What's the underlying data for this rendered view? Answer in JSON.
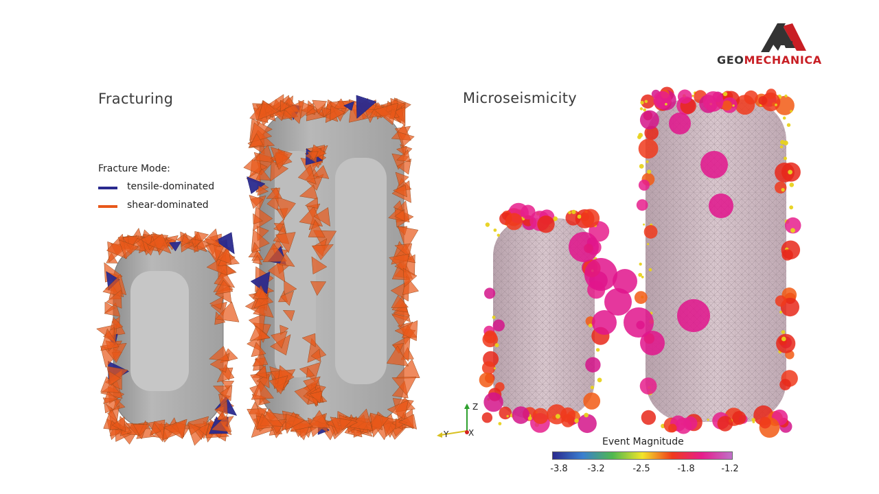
{
  "brand": {
    "name_part1": "GEO",
    "name_part2": "MECHANICA",
    "dark_color": "#333333",
    "accent_color": "#c81e24"
  },
  "panels": {
    "left_title": "Fracturing",
    "right_title": "Microseismicity"
  },
  "legend": {
    "title": "Fracture Mode:",
    "items": [
      {
        "label": "tensile-dominated",
        "color": "#2a2a8e"
      },
      {
        "label": "shear-dominated",
        "color": "#e8581a"
      }
    ]
  },
  "colorbar": {
    "title": "Event Magnitude",
    "ticks": [
      "-3.8",
      "-3.2",
      "-2.5",
      "-1.8",
      "-1.2"
    ],
    "colors": [
      "#2a2a8e",
      "#3a7fd0",
      "#4fb84f",
      "#f2e52a",
      "#f03a1c",
      "#e61e8c",
      "#c070c8"
    ]
  },
  "axes_triad": {
    "z": "Z",
    "y": "Y",
    "x": "X"
  },
  "icons": {
    "logo": "geomechanica-triangle-logo"
  }
}
